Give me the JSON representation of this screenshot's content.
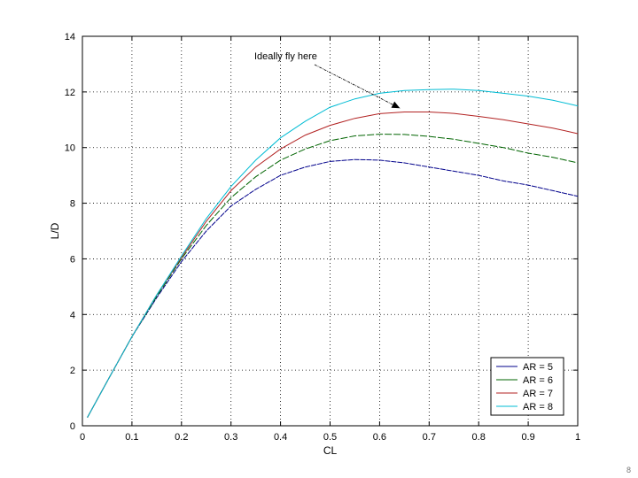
{
  "chart_data": {
    "type": "line",
    "xlabel": "CL",
    "ylabel": "L/D",
    "xlim": [
      0,
      1
    ],
    "ylim": [
      0,
      14
    ],
    "xticks": [
      0,
      0.1,
      0.2,
      0.3,
      0.4,
      0.5,
      0.6,
      0.7,
      0.8,
      0.9,
      1
    ],
    "xtick_labels": [
      "0",
      "0.1",
      "0.2",
      "0.3",
      "0.4",
      "0.5",
      "0.6",
      "0.7",
      "0.8",
      "0.9",
      "1"
    ],
    "yticks": [
      0,
      2,
      4,
      6,
      8,
      10,
      12,
      14
    ],
    "ytick_labels": [
      "0",
      "2",
      "4",
      "6",
      "8",
      "10",
      "12",
      "14"
    ],
    "grid": true,
    "legend_position": "bottom-right",
    "x": [
      0.01,
      0.05,
      0.1,
      0.15,
      0.2,
      0.25,
      0.3,
      0.35,
      0.4,
      0.45,
      0.5,
      0.55,
      0.6,
      0.65,
      0.7,
      0.75,
      0.8,
      0.85,
      0.9,
      0.95,
      1.0
    ],
    "series": [
      {
        "name": "AR = 5",
        "color": "#00008b",
        "values": [
          0.3,
          1.6,
          3.2,
          4.6,
          5.9,
          7.0,
          7.9,
          8.5,
          9.0,
          9.3,
          9.5,
          9.57,
          9.55,
          9.45,
          9.3,
          9.15,
          9.0,
          8.8,
          8.65,
          8.45,
          8.25
        ]
      },
      {
        "name": "AR = 6",
        "color": "#006400",
        "values": [
          0.3,
          1.6,
          3.2,
          4.65,
          6.0,
          7.2,
          8.2,
          8.95,
          9.55,
          9.95,
          10.25,
          10.42,
          10.48,
          10.47,
          10.4,
          10.3,
          10.15,
          10.0,
          9.8,
          9.65,
          9.45
        ]
      },
      {
        "name": "AR = 7",
        "color": "#b22222",
        "values": [
          0.3,
          1.6,
          3.2,
          4.7,
          6.05,
          7.35,
          8.45,
          9.3,
          9.95,
          10.45,
          10.8,
          11.05,
          11.22,
          11.28,
          11.28,
          11.23,
          11.12,
          11.0,
          10.85,
          10.7,
          10.5
        ]
      },
      {
        "name": "AR = 8",
        "color": "#00bcd4",
        "values": [
          0.3,
          1.6,
          3.2,
          4.7,
          6.1,
          7.45,
          8.6,
          9.55,
          10.35,
          10.95,
          11.45,
          11.75,
          11.95,
          12.05,
          12.08,
          12.1,
          12.05,
          11.95,
          11.85,
          11.7,
          11.5
        ]
      }
    ],
    "annotations": [
      {
        "text": "Ideally fly here",
        "points_to": {
          "x": 0.65,
          "y": 11.35
        }
      }
    ]
  },
  "page": {
    "number": "8"
  }
}
